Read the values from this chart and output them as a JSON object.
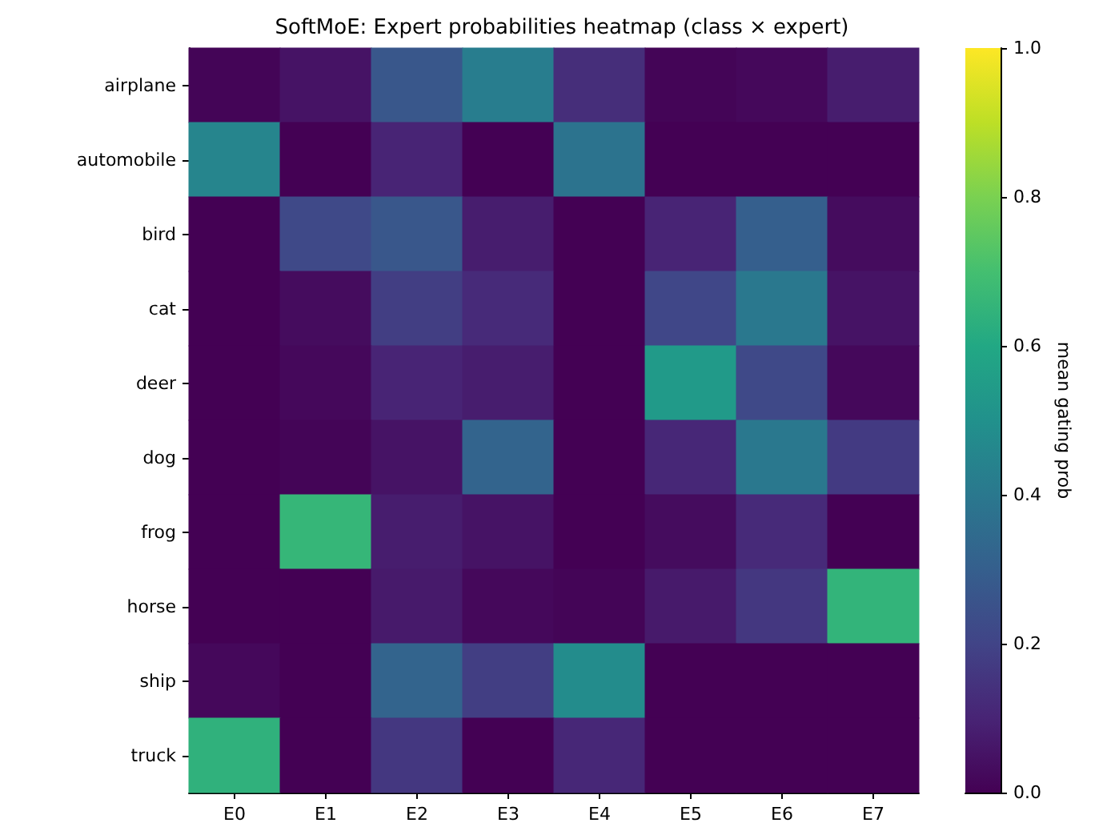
{
  "chart_data": {
    "type": "heatmap",
    "title": "SoftMoE: Expert probabilities heatmap (class × expert)",
    "categories": [
      "E0",
      "E1",
      "E2",
      "E3",
      "E4",
      "E5",
      "E6",
      "E7"
    ],
    "y_categories": [
      "airplane",
      "automobile",
      "bird",
      "cat",
      "deer",
      "dog",
      "frog",
      "horse",
      "ship",
      "truck"
    ],
    "cells": [
      [
        0.01,
        0.05,
        0.27,
        0.42,
        0.13,
        0.01,
        0.02,
        0.08
      ],
      [
        0.45,
        0.0,
        0.1,
        0.0,
        0.38,
        0.0,
        0.0,
        0.0
      ],
      [
        0.0,
        0.22,
        0.27,
        0.08,
        0.0,
        0.1,
        0.3,
        0.03
      ],
      [
        0.0,
        0.03,
        0.18,
        0.12,
        0.0,
        0.21,
        0.4,
        0.05
      ],
      [
        0.0,
        0.02,
        0.1,
        0.08,
        0.0,
        0.54,
        0.22,
        0.02
      ],
      [
        0.0,
        0.01,
        0.05,
        0.32,
        0.0,
        0.11,
        0.4,
        0.17
      ],
      [
        0.0,
        0.66,
        0.08,
        0.05,
        0.0,
        0.03,
        0.12,
        0.0
      ],
      [
        0.0,
        0.0,
        0.07,
        0.02,
        0.01,
        0.07,
        0.16,
        0.65
      ],
      [
        0.02,
        0.0,
        0.32,
        0.18,
        0.48,
        0.0,
        0.0,
        0.0
      ],
      [
        0.64,
        0.0,
        0.16,
        0.0,
        0.11,
        0.0,
        0.0,
        0.0
      ]
    ],
    "clim": [
      0,
      1
    ],
    "cticks": [
      {
        "value": 0,
        "label": "0.0"
      },
      0.2,
      0.4,
      0.6,
      0.8,
      {
        "value": 1,
        "label": "1.0"
      }
    ],
    "clabel": "mean gating prob"
  }
}
